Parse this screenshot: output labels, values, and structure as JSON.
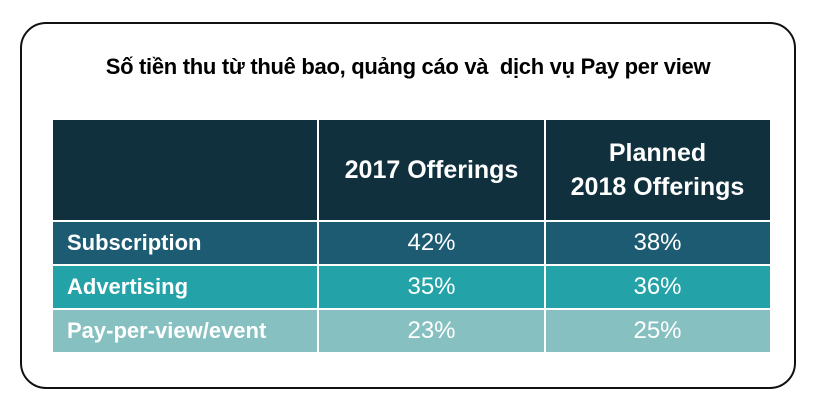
{
  "title": "Số tiền thu từ thuê bao, quảng cáo và  dịch vụ Pay per view",
  "table": {
    "columns": [
      [
        "2017 Offerings"
      ],
      [
        "Planned",
        "2018 Offerings"
      ]
    ],
    "rows": [
      [
        "Subscription",
        "42%",
        "38%"
      ],
      [
        "Advertising",
        "35%",
        "36%"
      ],
      [
        "Pay-per-view/event",
        "23%",
        "25%"
      ]
    ]
  }
}
